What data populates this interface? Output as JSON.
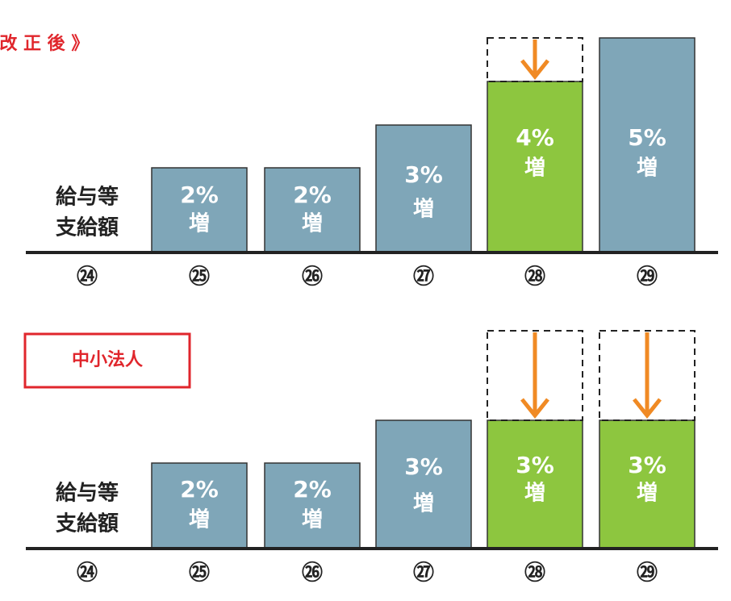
{
  "panels": [
    {
      "title": "《 改 正 後 》",
      "row_label": [
        "給与等",
        "支給額"
      ],
      "bars": [
        {
          "label": "2%",
          "suffix": "増"
        },
        {
          "label": "2%",
          "suffix": "増"
        },
        {
          "label": "3%",
          "suffix": "増"
        },
        {
          "label": "4%",
          "suffix": "増"
        },
        {
          "label": "5%",
          "suffix": "増"
        }
      ],
      "years": [
        "㉔",
        "㉕",
        "㉖",
        "㉗",
        "㉘",
        "㉙"
      ]
    },
    {
      "title": "中小法人",
      "row_label": [
        "給与等",
        "支給額"
      ],
      "bars": [
        {
          "label": "2%",
          "suffix": "増"
        },
        {
          "label": "2%",
          "suffix": "増"
        },
        {
          "label": "3%",
          "suffix": "増"
        },
        {
          "label": "3%",
          "suffix": "増"
        },
        {
          "label": "3%",
          "suffix": "増"
        }
      ],
      "years": [
        "㉔",
        "㉕",
        "㉖",
        "㉗",
        "㉘",
        "㉙"
      ]
    }
  ]
}
